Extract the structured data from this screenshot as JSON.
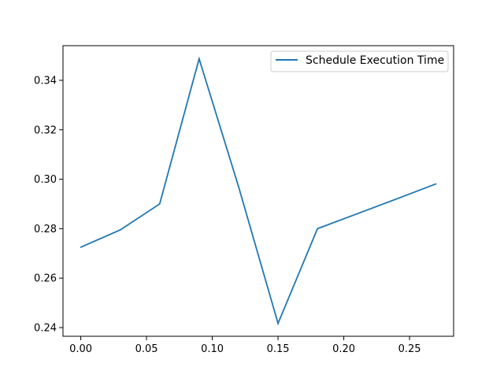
{
  "chart_data": {
    "type": "line",
    "title": "",
    "xlabel": "",
    "ylabel": "",
    "xlim": [
      -0.0135,
      0.2835
    ],
    "ylim": [
      0.2365,
      0.354
    ],
    "x_ticks": [
      0.0,
      0.05,
      0.1,
      0.15,
      0.2,
      0.25
    ],
    "x_tick_labels": [
      "0.00",
      "0.05",
      "0.10",
      "0.15",
      "0.20",
      "0.25"
    ],
    "y_ticks": [
      0.24,
      0.26,
      0.28,
      0.3,
      0.32,
      0.34
    ],
    "y_tick_labels": [
      "0.24",
      "0.26",
      "0.28",
      "0.30",
      "0.32",
      "0.34"
    ],
    "grid": false,
    "legend_position": "top-right",
    "series": [
      {
        "name": "Schedule Execution Time",
        "color": "#1f77b4",
        "x": [
          0.0,
          0.03,
          0.06,
          0.09,
          0.12,
          0.15,
          0.18,
          0.21,
          0.24,
          0.27
        ],
        "y": [
          0.2725,
          0.2795,
          0.29,
          0.3487,
          0.297,
          0.2417,
          0.28,
          0.286,
          0.292,
          0.2981
        ]
      }
    ]
  }
}
